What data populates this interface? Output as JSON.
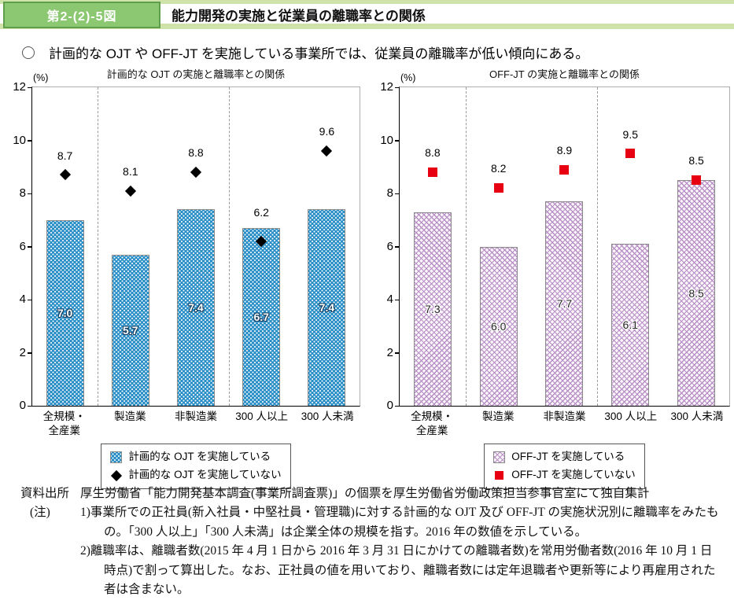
{
  "header": {
    "figure_label": "第2-(2)-5図",
    "title": "能力開発の実施と従業員の離職率との関係",
    "label_bg_color": "#8cc871",
    "label_border_color": "#5f9e4c",
    "stripe_color": "#cfe2a9"
  },
  "summary": {
    "text": "計画的な OJT や OFF-JT を実施している事業所では、従業員の離職率が低い傾向にある。"
  },
  "chart_data": [
    {
      "type": "bar",
      "title": "計画的な OJT の実施と離職率との関係",
      "unit_label": "(%)",
      "categories": [
        "全規模・\n全産業",
        "製造業",
        "非製造業",
        "300 人以上",
        "300 人未満"
      ],
      "series": [
        {
          "name": "計画的な OJT を実施している",
          "type": "bar",
          "pattern": "dots",
          "color": "#2a8fc7",
          "values": [
            7.0,
            5.7,
            7.4,
            6.7,
            7.4
          ],
          "value_label_style": "light"
        },
        {
          "name": "計画的な OJT を実施していない",
          "type": "point",
          "marker": "diamond",
          "color": "#000000",
          "values": [
            8.7,
            8.1,
            8.8,
            6.2,
            9.6
          ]
        }
      ],
      "ylim": [
        0,
        12
      ],
      "yticks": [
        0,
        2,
        4,
        6,
        8,
        10,
        12
      ],
      "separators_after": [
        0,
        2
      ],
      "grid": false,
      "legend_position": "bottom"
    },
    {
      "type": "bar",
      "title": "OFF-JT の実施と離職率との関係",
      "unit_label": "(%)",
      "categories": [
        "全規模・\n全産業",
        "製造業",
        "非製造業",
        "300 人以上",
        "300 人未満"
      ],
      "series": [
        {
          "name": "OFF-JT を実施している",
          "type": "bar",
          "pattern": "crosshatch",
          "color": "#b78fc5",
          "values": [
            7.3,
            6.0,
            7.7,
            6.1,
            8.5
          ],
          "value_label_style": "dark"
        },
        {
          "name": "OFF-JT を実施していない",
          "type": "point",
          "marker": "square",
          "color": "#e60012",
          "values": [
            8.8,
            8.2,
            8.9,
            9.5,
            8.5
          ]
        }
      ],
      "ylim": [
        0,
        12
      ],
      "yticks": [
        0,
        2,
        4,
        6,
        8,
        10,
        12
      ],
      "separators_after": [
        0,
        2
      ],
      "grid": false,
      "legend_position": "bottom"
    }
  ],
  "footnotes": {
    "source_label": "資料出所",
    "source_text": "厚生労働省「能力開発基本調査(事業所調査票)」の個票を厚生労働省労働政策担当参事官室にて独自集計",
    "note_label": "(注)",
    "notes": [
      "1)事業所での正社員(新入社員・中堅社員・管理職)に対する計画的な OJT 及び OFF-JT の実施状況別に離職率をみたもの。「300 人以上」「300 人未満」は企業全体の規模を指す。2016 年の数値を示している。",
      "2)離職率は、離職者数(2015 年 4 月 1 日から 2016 年 3 月 31 日にかけての離職者数)を常用労働者数(2016 年 10 月 1 日時点)で割って算出した。なお、正社員の値を用いており、離職者数には定年退職者や更新等により再雇用された者は含まない。"
    ]
  }
}
